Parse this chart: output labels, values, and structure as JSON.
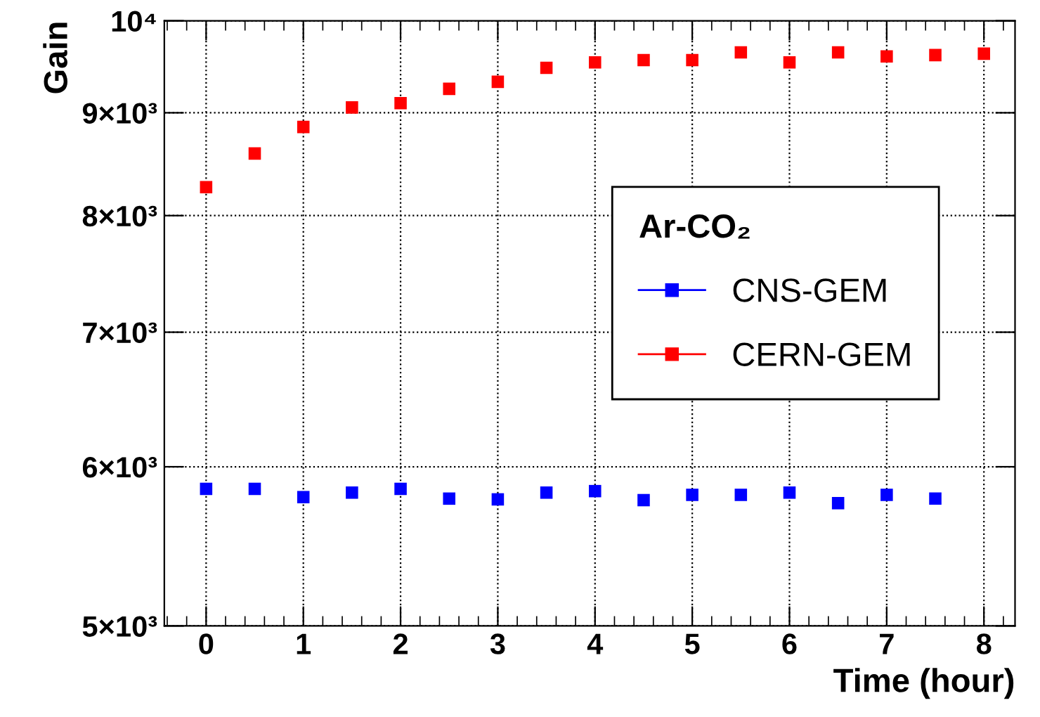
{
  "chart_data": {
    "type": "scatter",
    "xlabel": "Time (hour)",
    "ylabel": "Gain",
    "legend_title": "Ar-CO₂",
    "legend": "right",
    "grid": true,
    "marker": "square",
    "log": "y",
    "x": [
      0,
      0.5,
      1,
      1.5,
      2,
      2.5,
      3,
      3.5,
      4,
      4.5,
      5,
      5.5,
      6,
      6.5,
      7,
      7.5,
      8
    ],
    "xlim": [
      -0.43,
      8.32
    ],
    "xticks": [
      0,
      1,
      2,
      3,
      4,
      5,
      6,
      7,
      8
    ],
    "ylim": [
      5000,
      10000
    ],
    "yticks": [
      {
        "value": 5000,
        "label": "5×10³"
      },
      {
        "value": 6000,
        "label": "6×10³"
      },
      {
        "value": 7000,
        "label": "7×10³"
      },
      {
        "value": 8000,
        "label": "8×10³"
      },
      {
        "value": 9000,
        "label": "9×10³"
      },
      {
        "value": 10000,
        "label": "10⁴"
      }
    ],
    "series": [
      {
        "name": "CNS-GEM",
        "color": "#0000ff",
        "x": [
          0,
          0.5,
          1,
          1.5,
          2,
          2.5,
          3,
          3.5,
          4,
          4.5,
          5,
          5.5,
          6,
          6.5,
          7,
          7.5
        ],
        "values": [
          5850,
          5850,
          5795,
          5825,
          5850,
          5785,
          5780,
          5825,
          5835,
          5775,
          5810,
          5810,
          5825,
          5755,
          5810,
          5785
        ]
      },
      {
        "name": "CERN-GEM",
        "color": "#ff0000",
        "values": [
          8265,
          8590,
          8855,
          9055,
          9100,
          9250,
          9325,
          9475,
          9535,
          9560,
          9560,
          9645,
          9535,
          9645,
          9600,
          9615,
          9630
        ]
      }
    ]
  }
}
